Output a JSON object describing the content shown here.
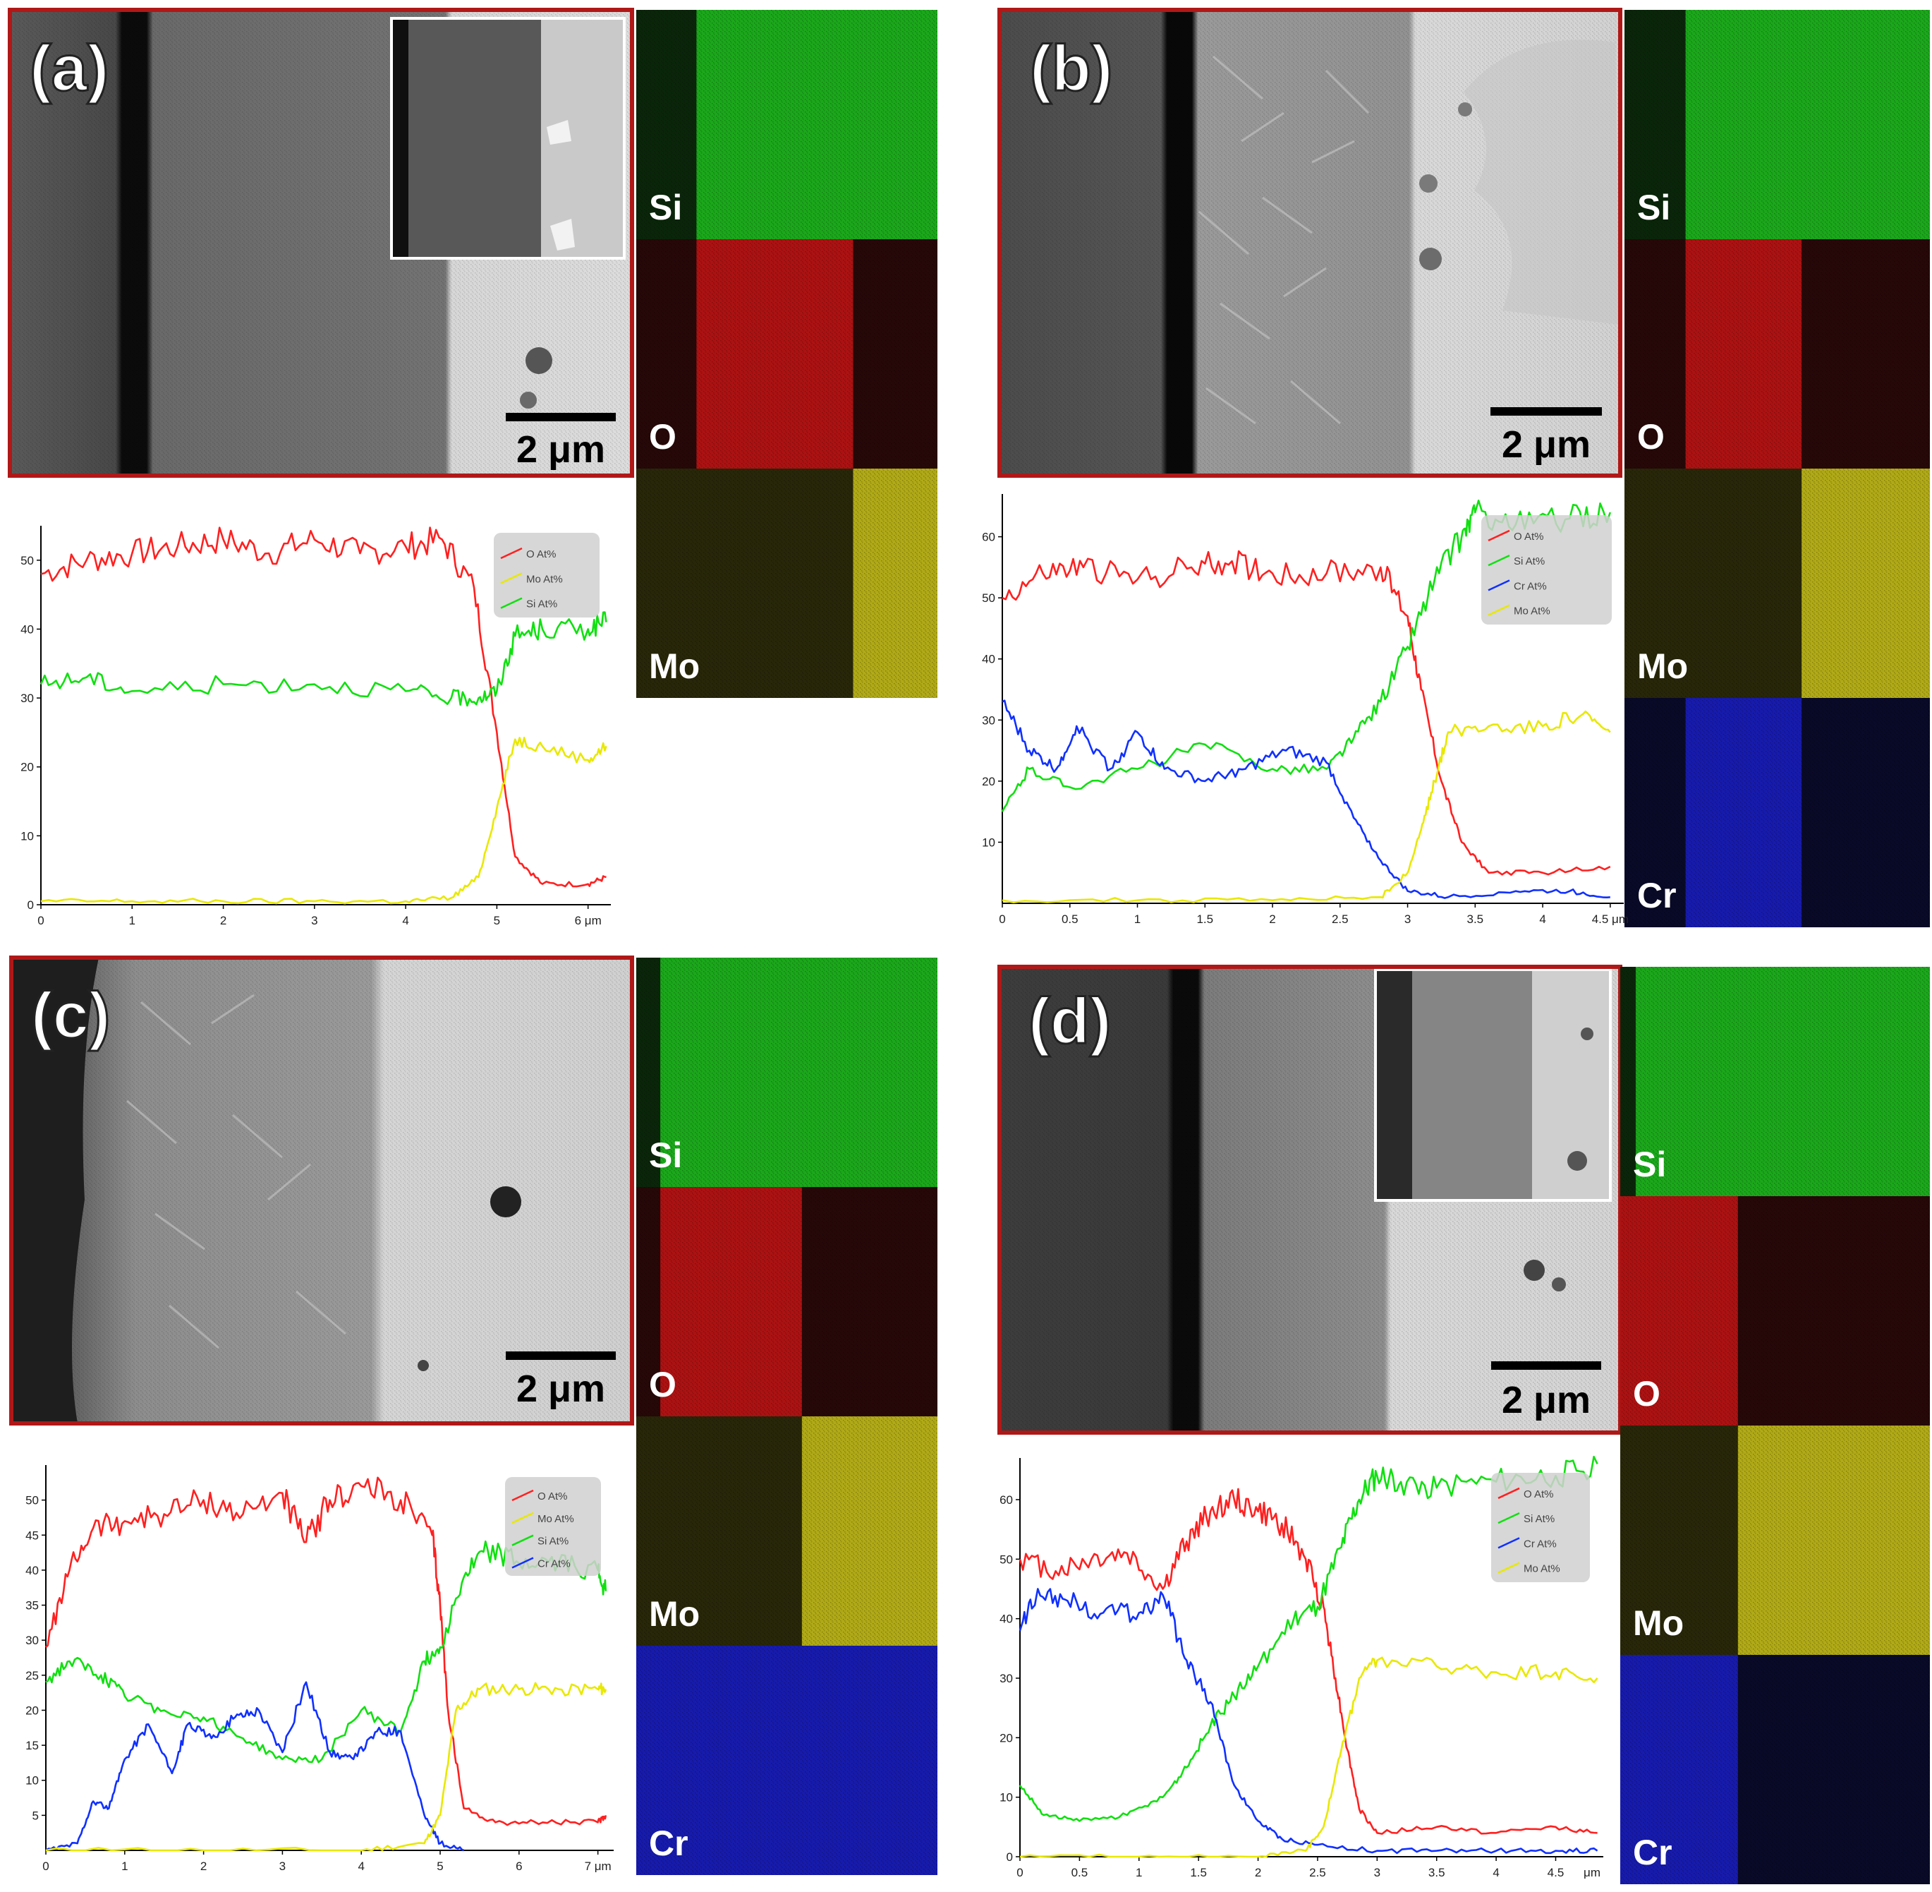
{
  "colors": {
    "frame": "#c00000",
    "O": "#ff2020",
    "Si": "#10e010",
    "Mo": "#e8e800",
    "Cr": "#1030ff",
    "mapSi": "#1fbf1f",
    "mapO": "#c41414",
    "mapMo": "#c8c21a",
    "mapCr": "#1a1fc4"
  },
  "panels": [
    {
      "label": "(a)",
      "scale_bar": "2 μm",
      "has_inset": true,
      "maps": [
        "Si",
        "O",
        "Mo"
      ]
    },
    {
      "label": "(b)",
      "scale_bar": "2 μm",
      "has_inset": false,
      "maps": [
        "Si",
        "O",
        "Mo",
        "Cr"
      ]
    },
    {
      "label": "(c)",
      "scale_bar": "2 μm",
      "has_inset": false,
      "maps": [
        "Si",
        "O",
        "Mo",
        "Cr"
      ]
    },
    {
      "label": "(d)",
      "scale_bar": "2 μm",
      "has_inset": true,
      "maps": [
        "Si",
        "O",
        "Mo",
        "Cr"
      ]
    }
  ],
  "chart_data": [
    {
      "type": "line",
      "panel": "(a)",
      "x_unit": "μm",
      "xlim": [
        0,
        6.25
      ],
      "ylim": [
        0,
        55
      ],
      "xticks": [
        0,
        1,
        2,
        3,
        4,
        5,
        6
      ],
      "xtick_labels": [
        "0",
        "1",
        "2",
        "3",
        "4",
        "5",
        "6 μm"
      ],
      "yticks": [
        0,
        10,
        20,
        30,
        40,
        50
      ],
      "legend": [
        "O At%",
        "Mo At%",
        "Si At%"
      ],
      "series": [
        {
          "name": "O At%",
          "element": "O",
          "x": [
            0,
            0.5,
            1,
            1.5,
            2,
            2.5,
            3,
            3.5,
            4,
            4.4,
            4.75,
            5.0,
            5.2,
            5.5,
            6.0,
            6.2
          ],
          "y": [
            48,
            50,
            51,
            52,
            53,
            51,
            53,
            51,
            52,
            53,
            46,
            25,
            7,
            3,
            3,
            4
          ]
        },
        {
          "name": "Mo At%",
          "element": "Mo",
          "x": [
            0,
            1,
            2,
            3,
            4,
            4.5,
            4.8,
            5.0,
            5.2,
            5.5,
            6.0,
            6.2
          ],
          "y": [
            0.5,
            0.5,
            0.5,
            0.5,
            0.5,
            1,
            4,
            14,
            24,
            23,
            21,
            23
          ]
        },
        {
          "name": "Si At%",
          "element": "Si",
          "x": [
            0,
            0.5,
            1,
            2,
            3,
            4,
            4.5,
            4.8,
            5.0,
            5.2,
            5.5,
            6.0,
            6.2
          ],
          "y": [
            32,
            33,
            31,
            32,
            32,
            31,
            30,
            30,
            31,
            39,
            40,
            40,
            41
          ]
        }
      ]
    },
    {
      "type": "line",
      "panel": "(b)",
      "x_unit": "μm",
      "xlim": [
        0,
        4.6
      ],
      "ylim": [
        0,
        67
      ],
      "xticks": [
        0,
        0.5,
        1,
        1.5,
        2,
        2.5,
        3,
        3.5,
        4,
        4.5
      ],
      "xtick_labels": [
        "0",
        "0.5",
        "1",
        "1.5",
        "2",
        "2.5",
        "3",
        "3.5",
        "4",
        "4.5 μm"
      ],
      "yticks": [
        10,
        20,
        30,
        40,
        50,
        60
      ],
      "legend": [
        "O At%",
        "Si At%",
        "Cr At%",
        "Mo At%"
      ],
      "series": [
        {
          "name": "O At%",
          "element": "O",
          "x": [
            0,
            0.3,
            0.6,
            1.0,
            1.4,
            1.7,
            2.0,
            2.4,
            2.8,
            3.0,
            3.1,
            3.25,
            3.4,
            3.6,
            4.0,
            4.5
          ],
          "y": [
            50,
            54,
            55,
            53,
            55,
            56,
            54,
            54,
            55,
            47,
            35,
            20,
            10,
            5,
            5,
            6
          ]
        },
        {
          "name": "Si At%",
          "element": "Si",
          "x": [
            0,
            0.2,
            0.5,
            1.0,
            1.5,
            2.0,
            2.4,
            2.6,
            2.8,
            3.0,
            3.2,
            3.4,
            3.5,
            3.8,
            4.2,
            4.5
          ],
          "y": [
            15,
            22,
            19,
            22,
            26,
            22,
            22,
            27,
            33,
            42,
            53,
            60,
            64,
            62,
            63,
            64
          ]
        },
        {
          "name": "Cr At%",
          "element": "Cr",
          "x": [
            0,
            0.2,
            0.4,
            0.55,
            0.8,
            1.0,
            1.2,
            1.5,
            1.8,
            2.1,
            2.4,
            2.6,
            2.8,
            3.0,
            3.3,
            3.8,
            4.2,
            4.5
          ],
          "y": [
            33,
            25,
            22,
            29,
            22,
            28,
            22,
            20,
            22,
            25,
            23,
            14,
            7,
            2,
            1,
            2,
            2,
            1
          ]
        },
        {
          "name": "Mo At%",
          "element": "Mo",
          "x": [
            0,
            1,
            2,
            2.8,
            3.0,
            3.1,
            3.2,
            3.3,
            3.6,
            4.0,
            4.3,
            4.5
          ],
          "y": [
            0.5,
            0.5,
            0.5,
            1,
            5,
            12,
            20,
            28,
            29,
            29,
            31,
            28
          ]
        }
      ]
    },
    {
      "type": "line",
      "panel": "(c)",
      "x_unit": "μm",
      "xlim": [
        0,
        7.2
      ],
      "ylim": [
        0,
        55
      ],
      "xticks": [
        0,
        1,
        2,
        3,
        4,
        5,
        6,
        7
      ],
      "xtick_labels": [
        "0",
        "1",
        "2",
        "3",
        "4",
        "5",
        "6",
        "7 μm"
      ],
      "yticks": [
        5,
        10,
        15,
        20,
        25,
        30,
        35,
        40,
        45,
        50
      ],
      "legend": [
        "O At%",
        "Mo At%",
        "Si At%",
        "Cr At%"
      ],
      "series": [
        {
          "name": "O At%",
          "element": "O",
          "x": [
            0,
            0.3,
            0.6,
            1.0,
            1.5,
            2.0,
            2.5,
            3.0,
            3.3,
            3.6,
            4.0,
            4.5,
            4.9,
            5.0,
            5.1,
            5.3,
            5.7,
            6.3,
            7.0,
            7.1
          ],
          "y": [
            29,
            40,
            46,
            47,
            48,
            50,
            48,
            51,
            44,
            50,
            52,
            50,
            45,
            35,
            20,
            6,
            4,
            4,
            4,
            5
          ]
        },
        {
          "name": "Si At%",
          "element": "Si",
          "x": [
            0,
            0.3,
            0.7,
            1.0,
            1.5,
            2.0,
            2.5,
            3.0,
            3.5,
            4.0,
            4.5,
            4.8,
            5.0,
            5.3,
            5.6,
            6.0,
            6.5,
            7.0,
            7.1
          ],
          "y": [
            24,
            27,
            25,
            22,
            20,
            19,
            16,
            13,
            13,
            20,
            17,
            27,
            29,
            39,
            43,
            41,
            41,
            40,
            37
          ]
        },
        {
          "name": "Cr At%",
          "element": "Cr",
          "x": [
            0,
            0.4,
            0.6,
            0.8,
            1.0,
            1.3,
            1.6,
            1.8,
            2.1,
            2.4,
            2.7,
            3.0,
            3.3,
            3.6,
            3.9,
            4.2,
            4.5,
            4.8,
            5.0,
            5.3
          ],
          "y": [
            0,
            1,
            7,
            6,
            13,
            18,
            11,
            18,
            16,
            19,
            20,
            14,
            24,
            14,
            13,
            17,
            17,
            5,
            1,
            0
          ]
        },
        {
          "name": "Mo At%",
          "element": "Mo",
          "x": [
            0,
            2,
            4,
            4.8,
            5.0,
            5.2,
            5.5,
            6.0,
            6.5,
            7.0,
            7.1
          ],
          "y": [
            0,
            0,
            0,
            1,
            5,
            20,
            23,
            23,
            23,
            23,
            23
          ]
        }
      ]
    },
    {
      "type": "line",
      "panel": "(d)",
      "x_unit": "μm",
      "xlim": [
        0,
        4.9
      ],
      "ylim": [
        0,
        67
      ],
      "xticks": [
        0,
        0.5,
        1,
        1.5,
        2,
        2.5,
        3,
        3.5,
        4,
        4.5
      ],
      "xtick_labels": [
        "0",
        "0.5",
        "1",
        "1.5",
        "2",
        "2.5",
        "3",
        "3.5",
        "4",
        "4.5"
      ],
      "x_unit_label": "μm",
      "yticks": [
        0,
        10,
        20,
        30,
        40,
        50,
        60
      ],
      "legend": [
        "O At%",
        "Si At%",
        "Cr At%",
        "Mo At%"
      ],
      "series": [
        {
          "name": "O At%",
          "element": "O",
          "x": [
            0,
            0.3,
            0.6,
            0.9,
            1.2,
            1.4,
            1.6,
            1.8,
            2.0,
            2.2,
            2.4,
            2.55,
            2.65,
            2.75,
            2.85,
            3.0,
            3.5,
            4.0,
            4.5,
            4.85
          ],
          "y": [
            50,
            48,
            50,
            51,
            45,
            53,
            58,
            60,
            58,
            56,
            50,
            42,
            30,
            18,
            8,
            4,
            5,
            4,
            5,
            4
          ]
        },
        {
          "name": "Si At%",
          "element": "Si",
          "x": [
            0,
            0.2,
            0.5,
            0.9,
            1.2,
            1.4,
            1.6,
            1.8,
            2.0,
            2.3,
            2.5,
            2.7,
            2.85,
            3.0,
            3.2,
            3.5,
            4.0,
            4.5,
            4.85
          ],
          "y": [
            12,
            7,
            6,
            7,
            10,
            15,
            22,
            27,
            32,
            40,
            42,
            52,
            60,
            64,
            63,
            62,
            63,
            64,
            66
          ]
        },
        {
          "name": "Cr At%",
          "element": "Cr",
          "x": [
            0,
            0.15,
            0.4,
            0.7,
            1.0,
            1.2,
            1.4,
            1.6,
            1.8,
            2.0,
            2.2,
            2.5,
            3.0,
            3.5,
            4.0,
            4.5,
            4.85
          ],
          "y": [
            38,
            45,
            43,
            41,
            41,
            44,
            33,
            26,
            12,
            6,
            3,
            2,
            1,
            1,
            1,
            1,
            1
          ]
        },
        {
          "name": "Mo At%",
          "element": "Mo",
          "x": [
            0,
            1,
            2,
            2.4,
            2.55,
            2.7,
            2.85,
            3.0,
            3.5,
            4.0,
            4.5,
            4.85
          ],
          "y": [
            0,
            0,
            0,
            1,
            5,
            18,
            30,
            33,
            32,
            31,
            31,
            30
          ]
        }
      ]
    }
  ]
}
